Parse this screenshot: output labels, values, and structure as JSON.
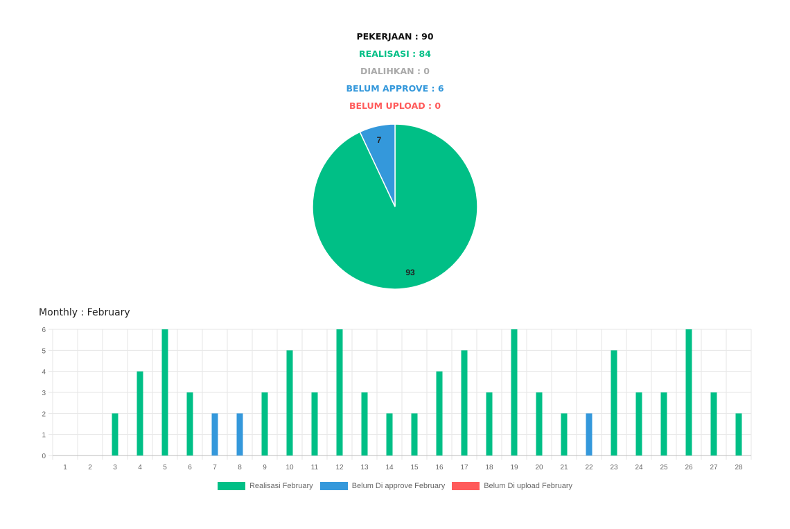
{
  "summary": {
    "pekerjaan": "PEKERJAAN : 90",
    "realisasi": "REALISASI : 84",
    "dialihkan": "DIALIHKAN : 0",
    "belum_approve": "BELUM APPROVE : 6",
    "belum_upload": "BELUM UPLOAD : 0"
  },
  "colors": {
    "pekerjaan": "#111111",
    "realisasi": "#00bf86",
    "dialihkan": "#aaaaaa",
    "belum_approve": "#3498db",
    "belum_upload": "#ff5b5b",
    "grid": "#e6e6e6",
    "tick": "#666666"
  },
  "monthly_title": "Monthly : February",
  "chart_data": [
    {
      "type": "pie",
      "slices": [
        {
          "label": "Realisasi",
          "value": 93,
          "color": "#00bf86"
        },
        {
          "label": "Belum Di approve",
          "value": 7,
          "color": "#3498db"
        }
      ],
      "data_labels": [
        "93",
        "7"
      ]
    },
    {
      "type": "bar",
      "title": "Monthly : February",
      "categories": [
        "1",
        "2",
        "3",
        "4",
        "5",
        "6",
        "7",
        "8",
        "9",
        "10",
        "11",
        "12",
        "13",
        "14",
        "15",
        "16",
        "17",
        "18",
        "19",
        "20",
        "21",
        "22",
        "23",
        "24",
        "25",
        "26",
        "27",
        "28"
      ],
      "ylim": [
        0,
        6
      ],
      "yticks": [
        "0",
        "1",
        "2",
        "3",
        "4",
        "5",
        "6"
      ],
      "grid": true,
      "legend_position": "bottom",
      "series": [
        {
          "name": "Realisasi February",
          "color": "#00bf86",
          "values": [
            0,
            0,
            2,
            4,
            6,
            3,
            0,
            0,
            3,
            5,
            3,
            6,
            3,
            2,
            2,
            4,
            5,
            3,
            6,
            3,
            2,
            0,
            5,
            3,
            3,
            6,
            3,
            2
          ]
        },
        {
          "name": "Belum Di approve February",
          "color": "#3498db",
          "values": [
            0,
            0,
            0,
            0,
            0,
            0,
            2,
            2,
            0,
            0,
            0,
            0,
            0,
            0,
            0,
            0,
            0,
            0,
            0,
            0,
            0,
            2,
            0,
            0,
            0,
            0,
            0,
            0
          ]
        },
        {
          "name": "Belum Di upload February",
          "color": "#ff5b5b",
          "values": [
            0,
            0,
            0,
            0,
            0,
            0,
            0,
            0,
            0,
            0,
            0,
            0,
            0,
            0,
            0,
            0,
            0,
            0,
            0,
            0,
            0,
            0,
            0,
            0,
            0,
            0,
            0,
            0
          ]
        }
      ]
    }
  ]
}
